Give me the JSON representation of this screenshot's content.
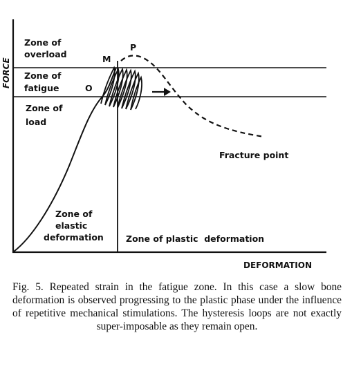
{
  "axes": {
    "y_label": "FORCE",
    "x_label": "DEFORMATION"
  },
  "zones": {
    "overload": [
      "Zone of",
      "overload"
    ],
    "fatigue": [
      "Zone of",
      "fatigue"
    ],
    "load": [
      "Zone of",
      "load"
    ],
    "elastic": [
      "Zone of",
      "elastic",
      "deformation"
    ],
    "plastic": "Zone of plastic  deformation"
  },
  "points": {
    "M": "M",
    "P": "P",
    "O": "O",
    "fracture": "Fracture point"
  },
  "caption": "Fig. 5. Repeated strain in the fatigue zone. In this case a slow bone deformation is observed progressing to the plastic phase under the influence of repetitive mechanical stimulations. The hysteresis loops are not exactly super-imposable as they remain open.",
  "colors": {
    "ink": "#111111",
    "background": "#ffffff"
  }
}
